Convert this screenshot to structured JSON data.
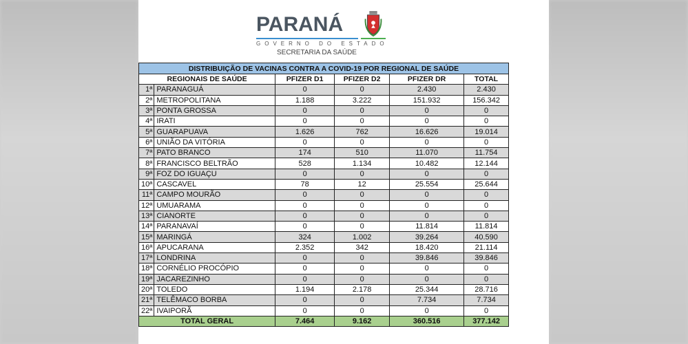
{
  "logo": {
    "word": "PARANÁ",
    "subtitle": "GOVERNO DO ESTADO",
    "department": "SECRETARIA DA SAÚDE"
  },
  "table": {
    "title": "DISTRIBUIÇÃO DE VACINAS CONTRA A COVID-19 POR REGIONAL DE SAÚDE",
    "headers": [
      "REGIONAIS DE SAÚDE",
      "PFIZER D1",
      "PFIZER D2",
      "PFIZER DR",
      "TOTAL"
    ],
    "rows": [
      [
        "1ª",
        "PARANAGUÁ",
        "0",
        "0",
        "2.430",
        "2.430"
      ],
      [
        "2ª",
        "METROPOLITANA",
        "1.188",
        "3.222",
        "151.932",
        "156.342"
      ],
      [
        "3ª",
        "PONTA GROSSA",
        "0",
        "0",
        "0",
        "0"
      ],
      [
        "4ª",
        "IRATI",
        "0",
        "0",
        "0",
        "0"
      ],
      [
        "5ª",
        "GUARAPUAVA",
        "1.626",
        "762",
        "16.626",
        "19.014"
      ],
      [
        "6ª",
        "UNIÃO DA VITÓRIA",
        "0",
        "0",
        "0",
        "0"
      ],
      [
        "7ª",
        "PATO BRANCO",
        "174",
        "510",
        "11.070",
        "11.754"
      ],
      [
        "8ª",
        "FRANCISCO BELTRÃO",
        "528",
        "1.134",
        "10.482",
        "12.144"
      ],
      [
        "9ª",
        "FOZ DO IGUAÇU",
        "0",
        "0",
        "0",
        "0"
      ],
      [
        "10ª",
        "CASCAVEL",
        "78",
        "12",
        "25.554",
        "25.644"
      ],
      [
        "11ª",
        "CAMPO MOURÃO",
        "0",
        "0",
        "0",
        "0"
      ],
      [
        "12ª",
        "UMUARAMA",
        "0",
        "0",
        "0",
        "0"
      ],
      [
        "13ª",
        "CIANORTE",
        "0",
        "0",
        "0",
        "0"
      ],
      [
        "14ª",
        "PARANAVAÍ",
        "0",
        "0",
        "11.814",
        "11.814"
      ],
      [
        "15ª",
        "MARINGÁ",
        "324",
        "1.002",
        "39.264",
        "40.590"
      ],
      [
        "16ª",
        "APUCARANA",
        "2.352",
        "342",
        "18.420",
        "21.114"
      ],
      [
        "17ª",
        "LONDRINA",
        "0",
        "0",
        "39.846",
        "39.846"
      ],
      [
        "18ª",
        "CORNÉLIO PROCÓPIO",
        "0",
        "0",
        "0",
        "0"
      ],
      [
        "19ª",
        "JACAREZINHO",
        "0",
        "0",
        "0",
        "0"
      ],
      [
        "20ª",
        "TOLEDO",
        "1.194",
        "2.178",
        "25.344",
        "28.716"
      ],
      [
        "21ª",
        "TELÊMACO BORBA",
        "0",
        "0",
        "7.734",
        "7.734"
      ],
      [
        "22ª",
        "IVAIPORÃ",
        "0",
        "0",
        "0",
        "0"
      ]
    ],
    "total": [
      "TOTAL GERAL",
      "7.464",
      "9.162",
      "360.516",
      "377.142"
    ]
  },
  "colors": {
    "title_bg": "#9dc3e6",
    "row_alt": "#d9d9d9",
    "total_bg": "#a9d08e"
  }
}
